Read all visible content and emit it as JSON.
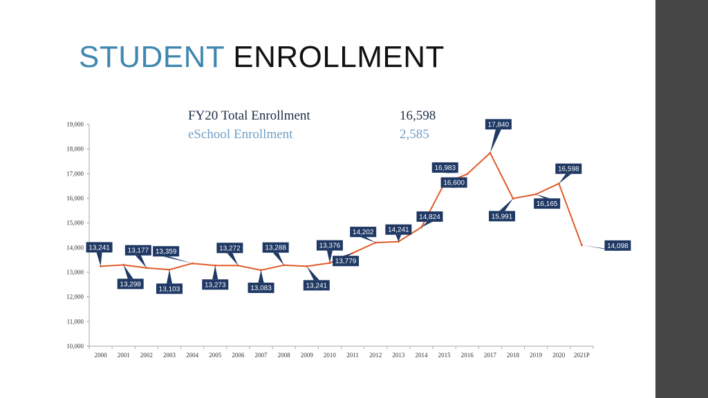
{
  "slide": {
    "title_accent": "STUDENT",
    "title_rest": "ENROLLMENT",
    "accent_color": "#3f87b0"
  },
  "summary": {
    "total_label": "FY20 Total Enrollment",
    "total_value": "16,598",
    "eschool_label": "eSchool Enrollment",
    "eschool_value": "2,585"
  },
  "chart_data": {
    "type": "line",
    "title": "",
    "xlabel": "",
    "ylabel": "",
    "ylim": [
      10000,
      19000
    ],
    "yticks": [
      "10,000",
      "11,000",
      "12,000",
      "13,000",
      "14,000",
      "15,000",
      "16,000",
      "17,000",
      "18,000",
      "19,000"
    ],
    "categories": [
      "2000",
      "2001",
      "2002",
      "2003",
      "2004",
      "2005",
      "2006",
      "2007",
      "2008",
      "2009",
      "2010",
      "2011",
      "2012",
      "2013",
      "2014",
      "2015",
      "2016",
      "2017",
      "2018",
      "2019",
      "2020",
      "2021P"
    ],
    "values": [
      13241,
      13298,
      13177,
      13103,
      13359,
      13273,
      13272,
      13083,
      13288,
      13241,
      13376,
      13779,
      14202,
      14241,
      14824,
      16600,
      16983,
      17840,
      15991,
      16165,
      16598,
      14098
    ],
    "labels": [
      "13,241",
      "13,298",
      "13,177",
      "13,103",
      "13,359",
      "13,273",
      "13,272",
      "13,083",
      "13,288",
      "13,241",
      "13,376",
      "13,779",
      "14,202",
      "14,241",
      "14,824",
      "16,600",
      "16,983",
      "17,840",
      "15,991",
      "16,165",
      "16,598",
      "14,098"
    ],
    "line_color": "#e05a27",
    "label_bg_color": "#1f3864",
    "grid": false,
    "legend": "none"
  }
}
